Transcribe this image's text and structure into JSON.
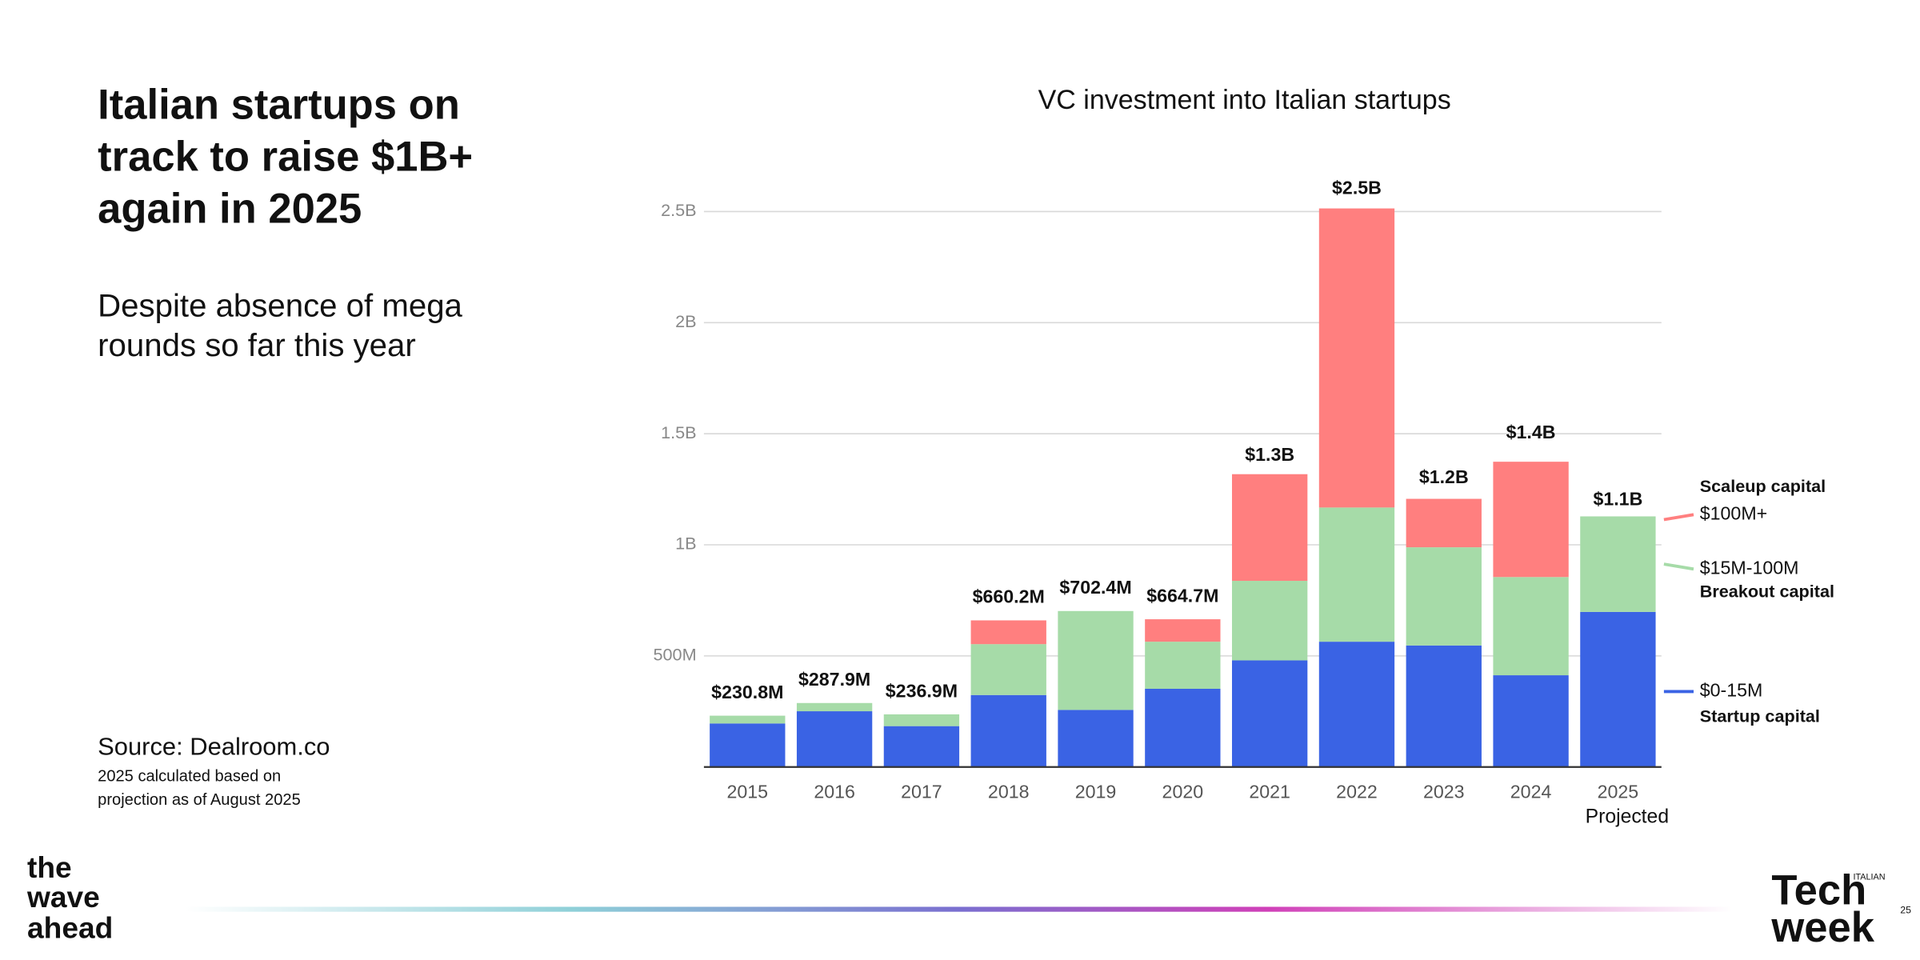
{
  "slide": {
    "headline": [
      "Italian startups on",
      "track to raise $1B+",
      "again in 2025"
    ],
    "subtitle": [
      "Despite absence of mega",
      "rounds so far this year"
    ],
    "source": "Source:  Dealroom.co",
    "note": [
      "2025 calculated based on",
      "projection as of August 2025"
    ],
    "logo_left": [
      "the",
      "wave",
      "ahead"
    ],
    "logo_right": {
      "small": "ITALIAN",
      "lines": [
        "Tech",
        "week"
      ]
    },
    "page_number": "25"
  },
  "chart_data": {
    "type": "stacked_bar",
    "title": "VC investment into Italian startups",
    "categories": [
      "2015",
      "2016",
      "2017",
      "2018",
      "2019",
      "2020",
      "2021",
      "2022",
      "2023",
      "2024",
      "2025"
    ],
    "x_annotation": "Projected",
    "series": [
      {
        "name": "Startup capital",
        "range": "$0-15M",
        "color": "#3a63e4",
        "label_color": "#8aaaf0",
        "range_color": "#3a63e4",
        "values": [
          196,
          251,
          184,
          324,
          257,
          352,
          480,
          564,
          547,
          413,
          698
        ]
      },
      {
        "name": "Breakout capital",
        "range": "$15M-100M",
        "color": "#a6dba8",
        "label_color": "#8fd18f",
        "range_color": "#4a7a4a",
        "values": [
          35,
          37,
          53,
          229,
          445,
          212,
          358,
          604,
          442,
          442,
          430
        ]
      },
      {
        "name": "Scaleup capital",
        "range": "$100M+",
        "color": "#ff7f7f",
        "label_color": "#f08080",
        "range_color": "#c0504d",
        "values": [
          0,
          0,
          0,
          107,
          0,
          101,
          480,
          1346,
          218,
          519,
          0
        ]
      }
    ],
    "totals": {
      "values": [
        230.8,
        287.9,
        236.9,
        660.2,
        702.4,
        664.7,
        1300,
        2500,
        1200,
        1400,
        1100
      ],
      "value_labels": [
        "$230.8M",
        "$287.9M",
        "$236.9M",
        "$660.2M",
        "$702.4M",
        "$664.7M",
        "$1.3B",
        "$2.5B",
        "$1.2B",
        "$1.4B",
        "$1.1B"
      ]
    },
    "ylim": [
      0,
      2500
    ],
    "yticks": [
      {
        "value": 500,
        "label": "500M"
      },
      {
        "value": 1000,
        "label": "1B"
      },
      {
        "value": 1500,
        "label": "1.5B"
      },
      {
        "value": 2000,
        "label": "2B"
      },
      {
        "value": 2500,
        "label": "2.5B"
      }
    ],
    "grid": true
  }
}
